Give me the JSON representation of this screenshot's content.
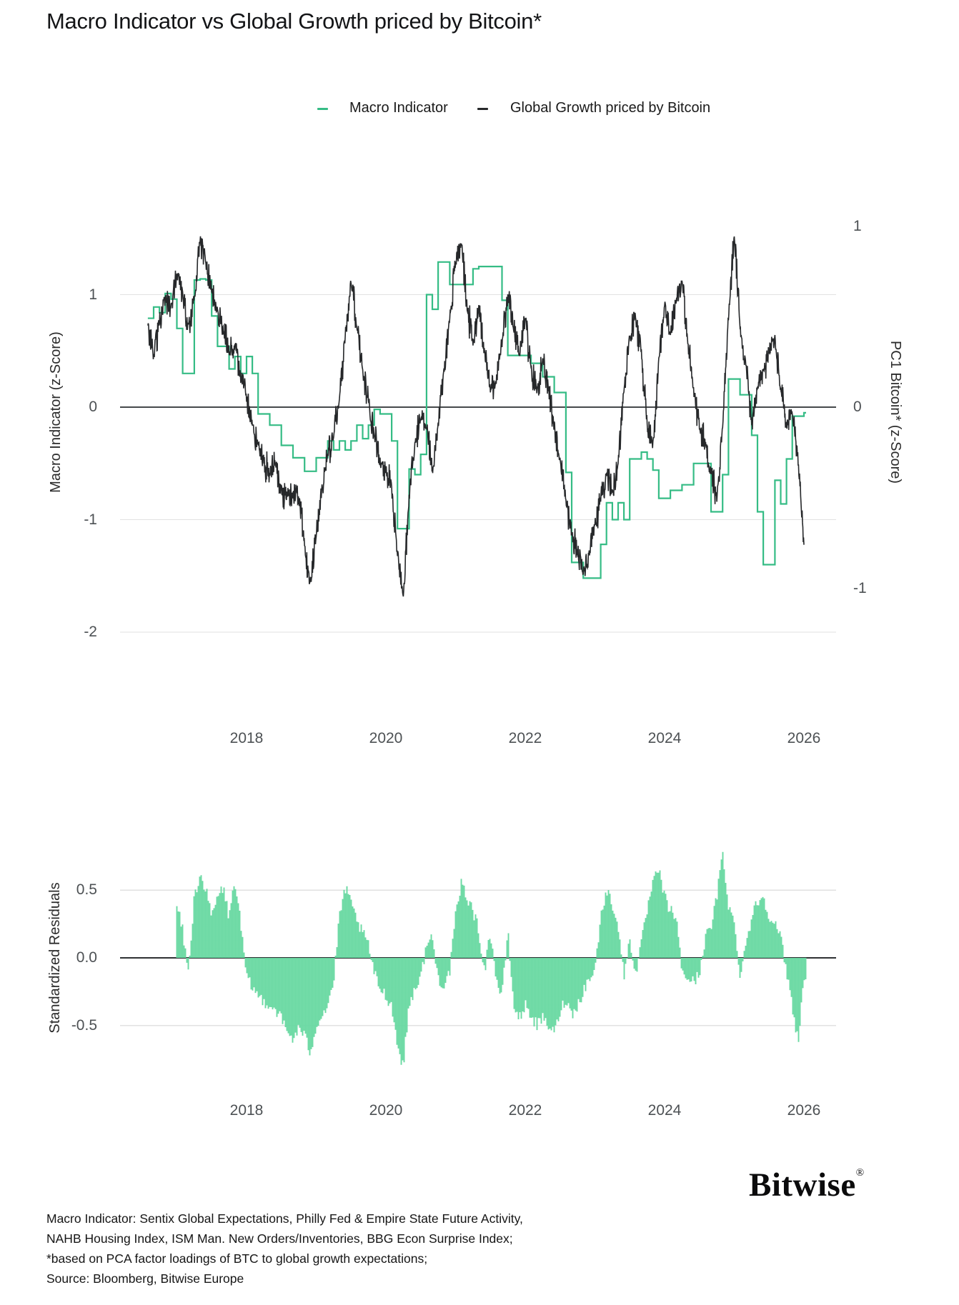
{
  "title": "Macro Indicator vs Global Growth priced by Bitcoin*",
  "legend": [
    {
      "label": "Macro Indicator",
      "color": "#35bc85"
    },
    {
      "label": "Global Growth priced by Bitcoin",
      "color": "#26282a"
    }
  ],
  "colors": {
    "macro_line": "#35bc85",
    "bitcoin_line": "#26282a",
    "residual_bar": "#69d9a2",
    "gridline": "#e1e1e1",
    "zero_line": "#46494b",
    "residual_zero_line": "#2e3133"
  },
  "footnotes": [
    "Macro Indicator: Sentix Global Expectations, Philly Fed & Empire State Future Activity,",
    "NAHB Housing Index, ISM Man. New Orders/Inventories, BBG Econ Surprise Index;",
    "*based on PCA factor loadings of BTC to global growth expectations;",
    "Source: Bloomberg, Bitwise Europe"
  ],
  "logo": {
    "name": "Bitwise",
    "registered": "®"
  },
  "chart_data": [
    {
      "type": "line",
      "title": "Macro Indicator vs Global Growth priced by Bitcoin*",
      "x_ticks": [
        "2018",
        "2020",
        "2022",
        "2024",
        "2026"
      ],
      "x_range": [
        2016.58,
        2026.03
      ],
      "left_axis": {
        "label": "Macro Indicator (z-Score)",
        "ticks": [
          "1",
          "0",
          "-1",
          "-2"
        ],
        "tick_values": [
          1,
          0,
          -1,
          -2
        ]
      },
      "right_axis": {
        "label": "PC1 Bitcoin* (z-Score)",
        "ticks": [
          "1",
          "0",
          "-1"
        ],
        "tick_values": [
          1,
          0,
          -1
        ]
      },
      "grid": "horizontal-only",
      "legend_position": "top-center",
      "series": [
        {
          "name": "Macro Indicator",
          "axis": "left",
          "style": "step",
          "color": "#35bc85",
          "x_start": 2016.5833,
          "x_step": 0.083333,
          "values": [
            0.79,
            0.89,
            0.84,
            1.01,
            0.96,
            0.7,
            0.3,
            0.3,
            1.13,
            1.14,
            1.13,
            0.81,
            0.54,
            0.54,
            0.34,
            0.45,
            0.3,
            0.45,
            0.3,
            -0.06,
            -0.06,
            -0.16,
            -0.16,
            -0.34,
            -0.34,
            -0.45,
            -0.45,
            -0.57,
            -0.57,
            -0.45,
            -0.45,
            -0.3,
            -0.38,
            -0.3,
            -0.38,
            -0.3,
            -0.16,
            -0.28,
            -0.16,
            -0.02,
            -0.06,
            -0.06,
            -0.3,
            -1.08,
            -1.08,
            -0.55,
            -0.6,
            -0.42,
            1.0,
            0.87,
            1.29,
            1.29,
            1.09,
            1.09,
            1.09,
            1.09,
            1.23,
            1.25,
            1.25,
            1.25,
            1.25,
            0.95,
            0.46,
            0.46,
            0.46,
            0.46,
            0.39,
            0.39,
            0.27,
            0.27,
            0.13,
            0.13,
            -0.58,
            -1.38,
            -1.38,
            -1.52,
            -1.52,
            -1.52,
            -1.22,
            -0.85,
            -1.0,
            -0.85,
            -1.0,
            -0.46,
            -0.46,
            -0.4,
            -0.46,
            -0.56,
            -0.81,
            -0.81,
            -0.74,
            -0.74,
            -0.69,
            -0.69,
            -0.5,
            -0.5,
            -0.5,
            -0.93,
            -0.93,
            -0.6,
            0.25,
            0.25,
            0.11,
            0.11,
            -0.25,
            -0.93,
            -1.4,
            -1.4,
            -0.65,
            -0.86,
            -0.46,
            -0.08,
            -0.08,
            -0.05
          ]
        },
        {
          "name": "Global Growth priced by Bitcoin",
          "axis": "right",
          "style": "noisy-daily-line",
          "color": "#26282a",
          "x_start": 2016.5833,
          "x_step": 0.083333,
          "values": [
            0.45,
            0.28,
            0.48,
            0.6,
            0.55,
            0.75,
            0.62,
            0.45,
            0.6,
            0.92,
            0.8,
            0.65,
            0.52,
            0.42,
            0.3,
            0.35,
            0.15,
            0.05,
            -0.1,
            -0.2,
            -0.3,
            -0.38,
            -0.3,
            -0.45,
            -0.5,
            -0.48,
            -0.52,
            -0.75,
            -0.96,
            -0.7,
            -0.45,
            -0.25,
            -0.15,
            0.05,
            0.4,
            0.7,
            0.45,
            0.2,
            0.05,
            -0.15,
            -0.3,
            -0.35,
            -0.45,
            -0.8,
            -1.05,
            -0.5,
            -0.2,
            -0.05,
            -0.1,
            -0.35,
            -0.1,
            0.2,
            0.5,
            0.8,
            0.92,
            0.55,
            0.35,
            0.56,
            0.3,
            0.1,
            0.15,
            0.35,
            0.6,
            0.45,
            0.3,
            0.5,
            0.2,
            0.1,
            0.25,
            0.1,
            -0.1,
            -0.3,
            -0.5,
            -0.7,
            -0.8,
            -0.92,
            -0.8,
            -0.65,
            -0.5,
            -0.35,
            -0.48,
            -0.3,
            0.1,
            0.4,
            0.5,
            0.3,
            -0.1,
            -0.21,
            0.25,
            0.58,
            0.4,
            0.6,
            0.7,
            0.35,
            0.1,
            -0.1,
            -0.2,
            -0.35,
            -0.5,
            -0.1,
            0.5,
            0.95,
            0.45,
            0.25,
            -0.1,
            0.1,
            0.2,
            0.3,
            0.38,
            0.1,
            -0.1,
            -0.05,
            -0.3,
            -0.76
          ]
        }
      ]
    },
    {
      "type": "bar",
      "title": "Standardized Residuals",
      "ylabel": "Standardized Residuals",
      "x_ticks": [
        "2018",
        "2020",
        "2022",
        "2024",
        "2026"
      ],
      "y_ticks": [
        "0.5",
        "0.0",
        "-0.5"
      ],
      "y_tick_values": [
        0.5,
        0.0,
        -0.5
      ],
      "ylim": [
        -0.85,
        0.8
      ],
      "color": "#69d9a2",
      "x_start": 2017.0,
      "x_step": 0.083333,
      "values": [
        0.39,
        0.2,
        -0.12,
        0.45,
        0.62,
        0.5,
        0.3,
        0.45,
        0.52,
        0.3,
        0.58,
        0.25,
        -0.15,
        -0.22,
        -0.28,
        -0.32,
        -0.35,
        -0.38,
        -0.45,
        -0.55,
        -0.6,
        -0.52,
        -0.58,
        -0.7,
        -0.5,
        -0.42,
        -0.35,
        -0.18,
        0.3,
        0.52,
        0.4,
        0.28,
        0.18,
        0.1,
        -0.12,
        -0.22,
        -0.28,
        -0.35,
        -0.65,
        -0.8,
        -0.35,
        -0.22,
        -0.15,
        0.1,
        0.15,
        -0.15,
        -0.2,
        -0.1,
        0.3,
        0.55,
        0.45,
        0.35,
        0.2,
        -0.1,
        0.2,
        -0.15,
        -0.3,
        0.2,
        -0.35,
        -0.45,
        -0.35,
        -0.42,
        -0.5,
        -0.45,
        -0.5,
        -0.56,
        -0.4,
        -0.3,
        -0.42,
        -0.35,
        -0.25,
        -0.15,
        -0.1,
        0.3,
        0.5,
        0.4,
        0.25,
        -0.15,
        0.15,
        -0.12,
        0.1,
        0.35,
        0.55,
        0.65,
        0.45,
        0.35,
        0.3,
        -0.1,
        -0.15,
        -0.18,
        -0.12,
        0.15,
        0.22,
        0.45,
        0.78,
        0.4,
        0.25,
        -0.12,
        0.1,
        0.3,
        0.42,
        0.45,
        0.32,
        0.25,
        0.15,
        -0.1,
        -0.35,
        -0.62,
        -0.15
      ]
    }
  ]
}
